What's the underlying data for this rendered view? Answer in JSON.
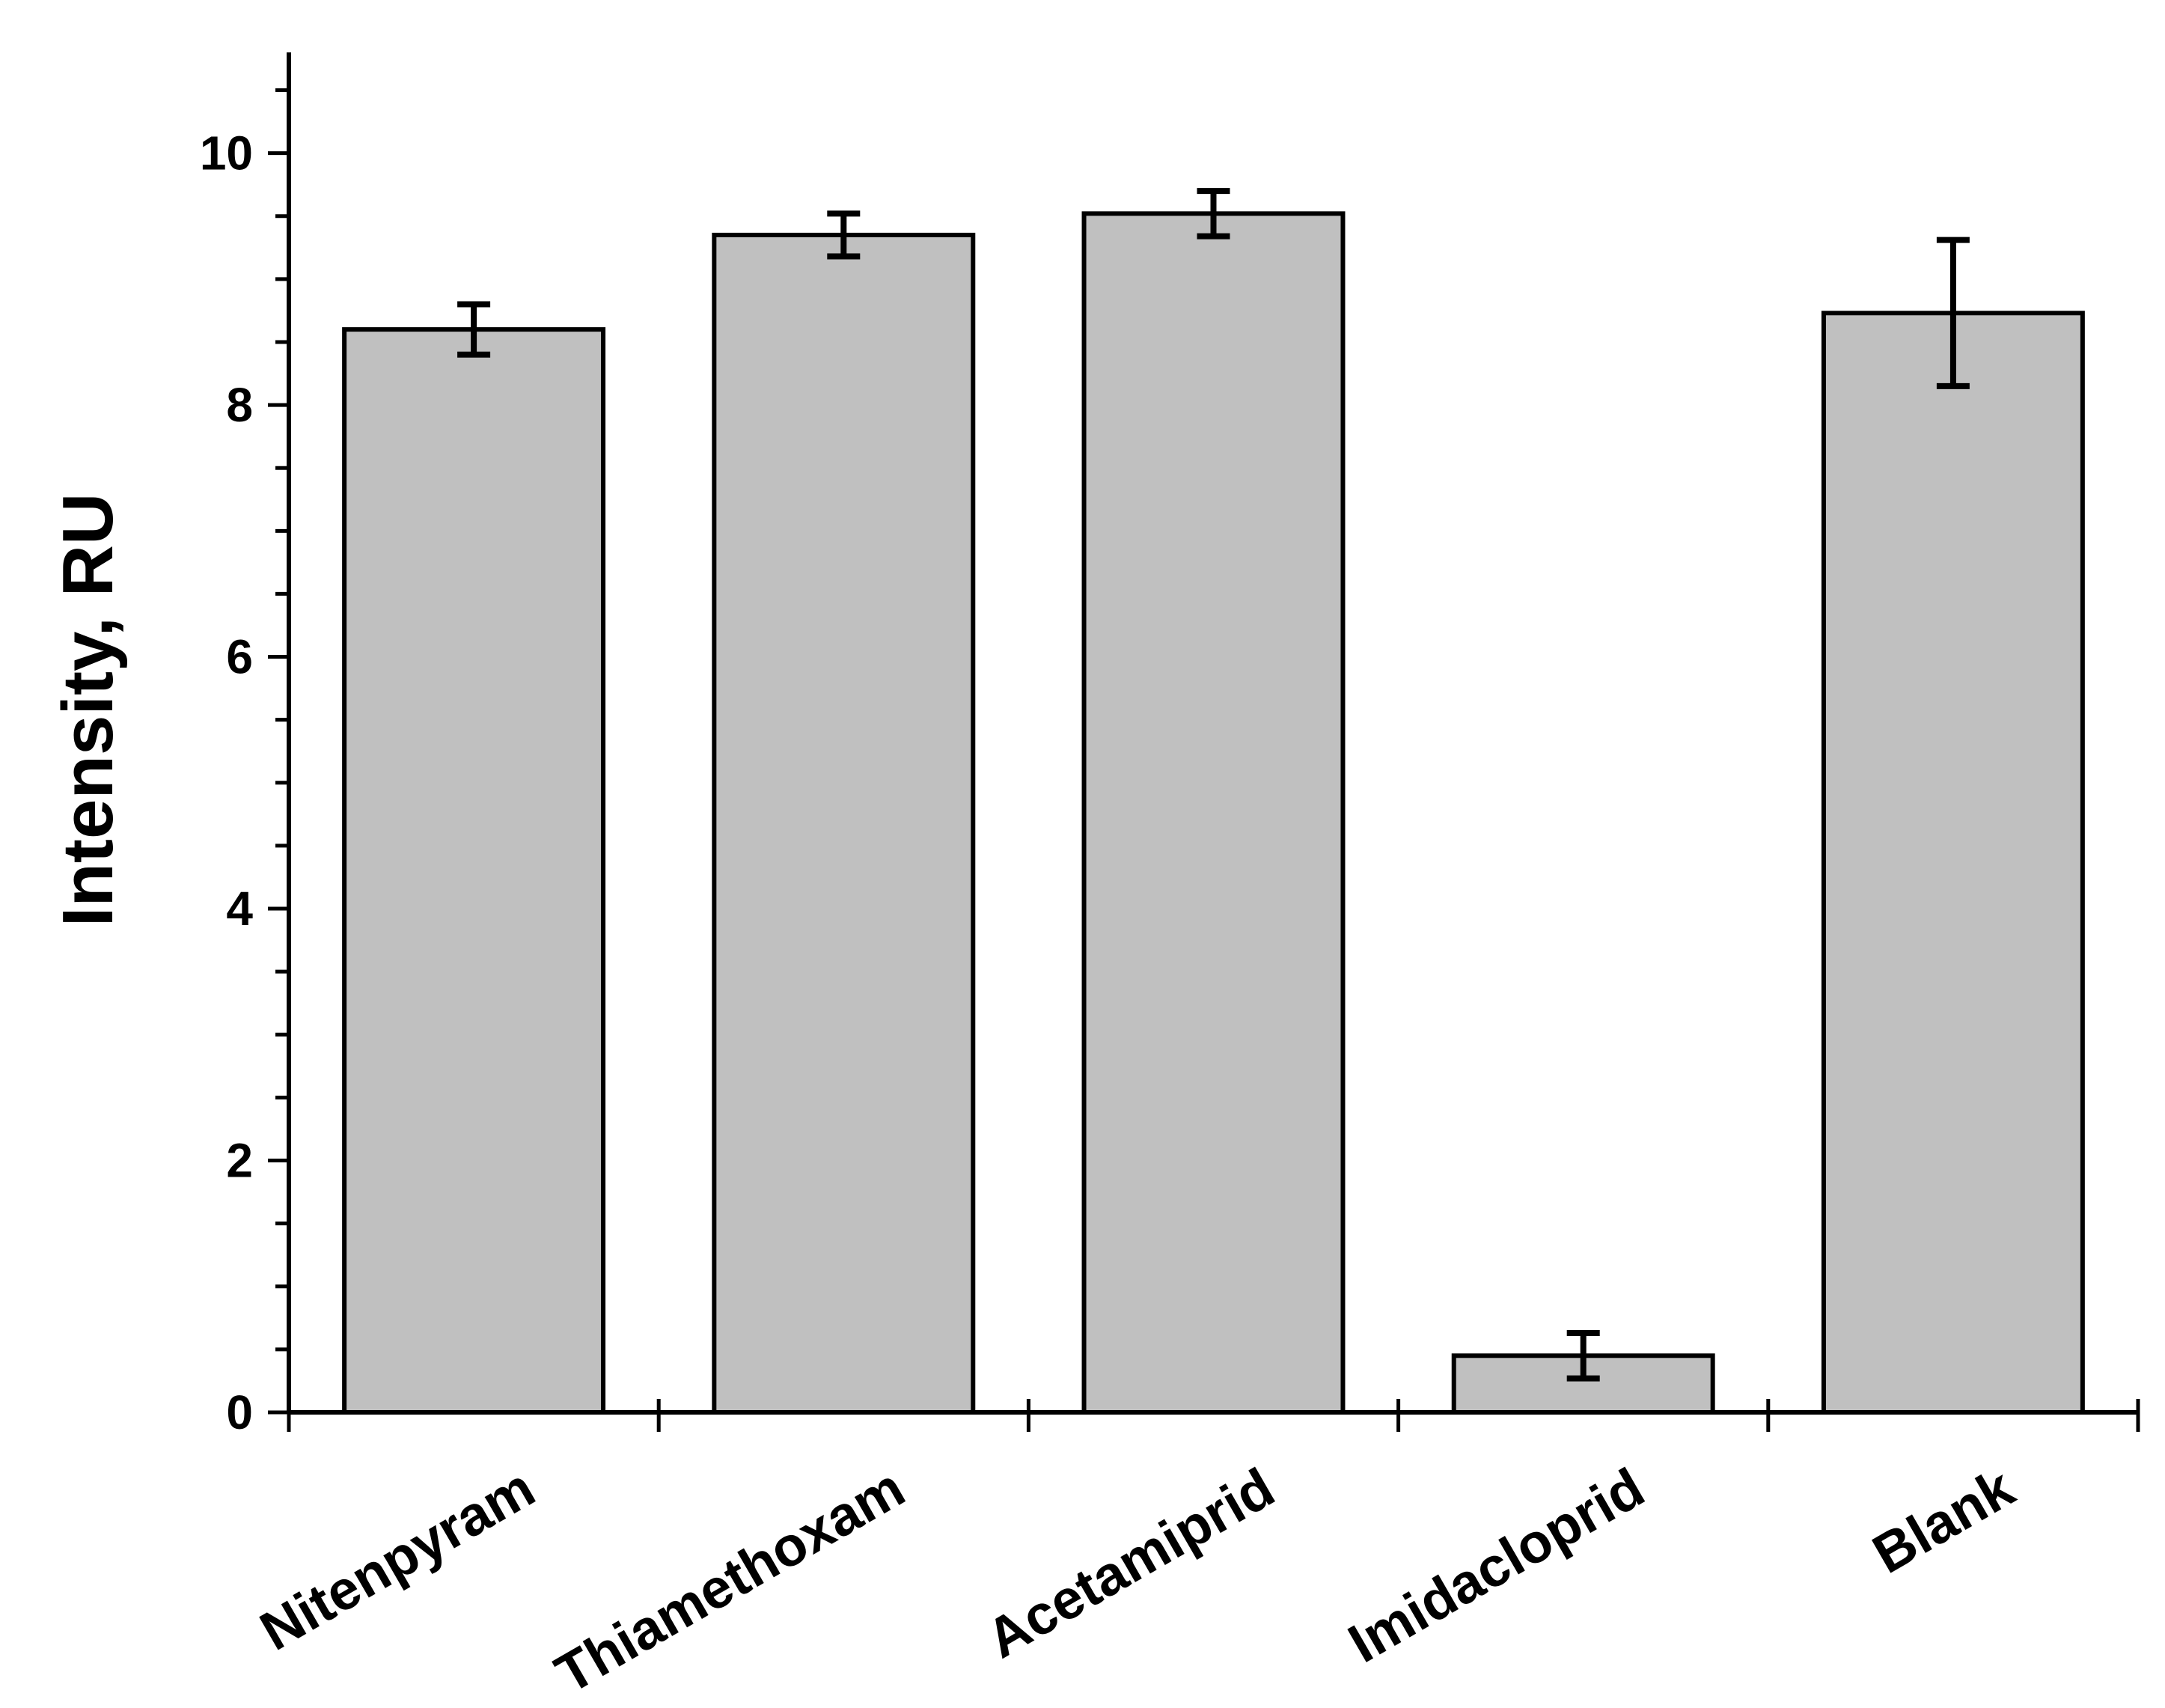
{
  "chart_data": {
    "type": "bar",
    "title": "",
    "xlabel": "",
    "ylabel": "Intensity, RU",
    "ylim": [
      0,
      10.8
    ],
    "yticks": [
      0,
      2,
      4,
      6,
      8,
      10
    ],
    "ytick_labels": [
      "0",
      "2",
      "4",
      "6",
      "8",
      "10"
    ],
    "grid": false,
    "categories": [
      "Nitenpyram",
      "Thiamethoxam",
      "Acetamiprid",
      "Imidacloprid",
      "Blank"
    ],
    "values": [
      8.6,
      9.35,
      9.52,
      0.45,
      8.73
    ],
    "errors": [
      0.2,
      0.17,
      0.18,
      0.18,
      0.58
    ],
    "colors": {
      "bar_fill": "#c0c0c0",
      "stroke": "#000000"
    }
  }
}
